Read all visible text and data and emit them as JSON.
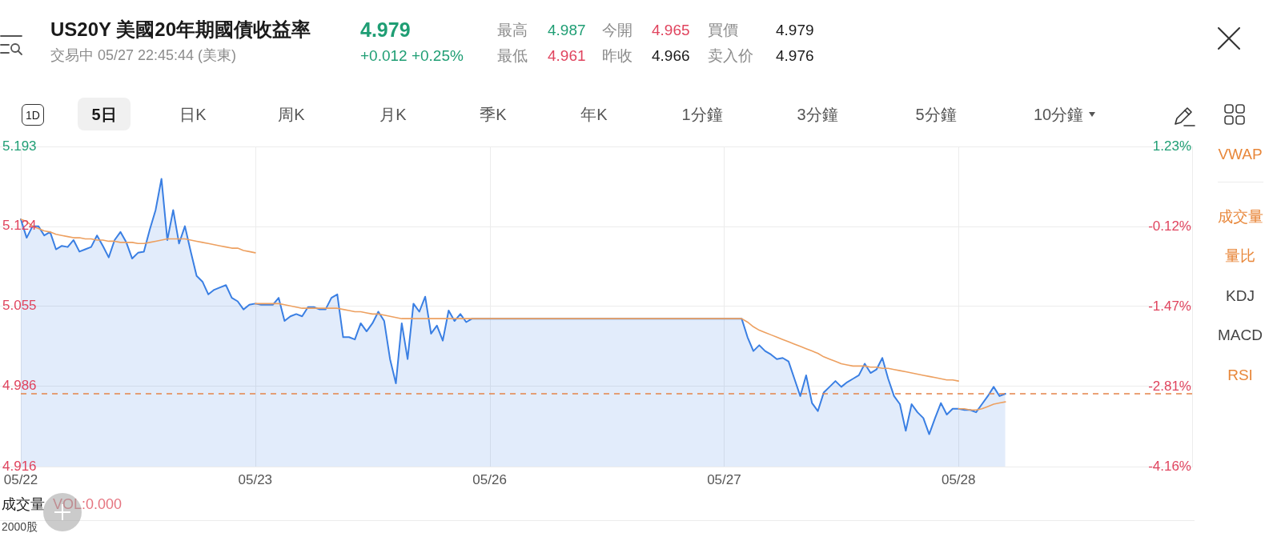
{
  "chart_data": {
    "type": "line",
    "title": "US20Y 美國20年期國債收益率",
    "subtitle": "交易中 05/27 22:45:44 (美東)",
    "annotations": [
      "4.979",
      "+0.012 +0.25%",
      "最高",
      "4.987",
      "今開",
      "4.965",
      "買價",
      "4.979",
      "最低",
      "4.961",
      "昨收",
      "4.966",
      "卖入价",
      "4.976",
      "1D",
      "5日",
      "日K",
      "周K",
      "月K",
      "季K",
      "年K",
      "1分鐘",
      "3分鐘",
      "5分鐘",
      "10分鐘",
      "VWAP",
      "成交量",
      "量比",
      "KDJ",
      "MACD",
      "RSI",
      "成交量",
      "VOL:0.000",
      "2000股"
    ],
    "categories": [
      "05/22",
      null,
      null,
      null,
      null,
      null,
      null,
      null,
      null,
      null,
      null,
      null,
      null,
      null,
      null,
      null,
      null,
      null,
      null,
      null,
      null,
      null,
      null,
      null,
      null,
      null,
      null,
      null,
      null,
      null,
      null,
      null,
      null,
      null,
      null,
      null,
      null,
      null,
      null,
      null,
      "05/23",
      null,
      null,
      null,
      null,
      null,
      null,
      null,
      null,
      null,
      null,
      null,
      null,
      null,
      null,
      null,
      null,
      null,
      null,
      null,
      null,
      null,
      null,
      null,
      null,
      null,
      null,
      null,
      null,
      null,
      null,
      null,
      null,
      null,
      null,
      null,
      null,
      null,
      null,
      null,
      "05/26",
      null,
      null,
      null,
      null,
      null,
      null,
      null,
      null,
      null,
      null,
      null,
      null,
      null,
      null,
      null,
      null,
      null,
      null,
      null,
      null,
      null,
      null,
      null,
      null,
      null,
      null,
      null,
      null,
      null,
      null,
      null,
      null,
      null,
      null,
      null,
      null,
      null,
      null,
      null,
      "05/27",
      null,
      null,
      null,
      null,
      null,
      null,
      null,
      null,
      null,
      null,
      null,
      null,
      null,
      null,
      null,
      null,
      null,
      null,
      null,
      null,
      null,
      null,
      null,
      null,
      null,
      null,
      null,
      null,
      null,
      null,
      null,
      null,
      null,
      null,
      null,
      null,
      null,
      null,
      null,
      "05/28",
      null,
      null,
      null,
      null,
      null,
      null,
      null,
      null,
      null,
      null,
      null,
      null,
      null,
      null,
      null,
      null,
      null,
      null,
      null,
      null,
      null,
      null,
      null,
      null,
      null,
      null,
      null,
      null,
      null,
      null,
      null,
      null,
      null,
      null,
      null,
      null,
      null,
      null,
      null,
      null
    ],
    "ylim": [
      4.916,
      5.193
    ],
    "yticks": [
      4.916,
      4.986,
      5.055,
      5.124,
      5.193
    ],
    "y2lim": [
      -4.16,
      1.23
    ],
    "y2ticks": [
      {
        "value": -4.16,
        "label": "-4.16%"
      },
      {
        "value": -2.81,
        "label": "-2.81%"
      },
      {
        "value": -1.47,
        "label": "-1.47%"
      },
      {
        "value": -0.12,
        "label": "-0.12%"
      },
      {
        "value": 1.23,
        "label": "1.23%"
      }
    ],
    "grid": true,
    "marker": "none",
    "ref_lines": [
      {
        "axis": "y",
        "value": 4.979,
        "color": "#e5844a",
        "line_style": "dashed"
      }
    ],
    "series": [
      {
        "type": "area",
        "color": "#3a7fe3",
        "values": [
          5.13,
          5.114,
          5.124,
          5.124,
          5.116,
          5.119,
          5.104,
          5.107,
          5.106,
          5.112,
          5.102,
          5.104,
          5.106,
          5.116,
          5.107,
          5.097,
          5.112,
          5.119,
          5.11,
          5.096,
          5.101,
          5.102,
          5.121,
          5.138,
          5.165,
          5.112,
          5.138,
          5.109,
          5.124,
          5.102,
          5.081,
          5.076,
          5.065,
          5.069,
          5.071,
          5.073,
          5.062,
          5.059,
          5.052,
          5.056,
          5.057,
          5.056,
          5.056,
          5.056,
          5.062,
          5.042,
          5.046,
          5.048,
          5.046,
          5.054,
          5.054,
          5.052,
          5.052,
          5.062,
          5.065,
          5.028,
          5.028,
          5.026,
          5.04,
          5.033,
          5.04,
          5.05,
          5.042,
          5.009,
          4.988,
          5.04,
          5.009,
          5.057,
          5.05,
          5.063,
          5.031,
          5.038,
          5.025,
          5.051,
          5.042,
          5.048,
          5.041,
          5.044,
          5.044,
          5.044,
          5.044,
          5.044,
          5.044,
          5.044,
          5.044,
          5.044,
          5.044,
          5.044,
          5.044,
          5.044,
          5.044,
          5.044,
          5.044,
          5.044,
          5.044,
          5.044,
          5.044,
          5.044,
          5.044,
          5.044,
          5.044,
          5.044,
          5.044,
          5.044,
          5.044,
          5.044,
          5.044,
          5.044,
          5.044,
          5.044,
          5.044,
          5.044,
          5.044,
          5.044,
          5.044,
          5.044,
          5.044,
          5.044,
          5.044,
          5.044,
          5.044,
          5.044,
          5.044,
          5.044,
          5.028,
          5.016,
          5.021,
          5.016,
          5.013,
          5.009,
          5.01,
          5.007,
          4.992,
          4.977,
          4.995,
          4.971,
          4.964,
          4.98,
          4.985,
          4.99,
          4.985,
          4.989,
          4.992,
          4.995,
          5.005,
          4.997,
          5.0,
          5.01,
          4.992,
          4.977,
          4.97,
          4.947,
          4.97,
          4.963,
          4.958,
          4.944,
          4.958,
          4.971,
          4.961,
          4.966,
          4.966,
          4.965,
          4.965,
          4.963,
          4.97,
          4.977,
          4.985,
          4.977,
          4.979,
          null,
          null,
          null,
          null,
          null,
          null,
          null,
          null,
          null,
          null,
          null,
          null,
          null,
          null,
          null,
          null,
          null,
          null,
          null,
          null,
          null,
          null,
          null,
          null,
          null,
          null,
          null,
          null,
          null,
          null,
          null,
          null
        ]
      },
      {
        "color": "#eda060",
        "values": [
          5.13,
          5.128,
          5.124,
          5.122,
          5.12,
          5.119,
          5.117,
          5.116,
          5.115,
          5.114,
          5.114,
          5.113,
          5.113,
          5.112,
          5.112,
          5.111,
          5.111,
          5.11,
          5.11,
          5.11,
          5.109,
          5.109,
          5.11,
          5.111,
          5.112,
          5.113,
          5.113,
          5.113,
          5.113,
          5.112,
          5.111,
          5.11,
          5.109,
          5.108,
          5.107,
          5.106,
          5.105,
          5.105,
          5.103,
          5.102,
          5.101,
          null,
          null,
          null,
          null,
          null,
          null,
          null,
          null,
          null,
          null,
          null,
          null,
          null,
          null,
          null,
          null,
          null,
          null,
          null,
          null,
          null,
          null,
          null,
          null,
          null,
          null,
          null,
          null,
          null,
          null,
          null,
          null,
          null,
          null,
          null,
          null,
          null,
          null,
          null,
          null,
          null,
          null,
          null,
          null,
          null,
          null,
          null,
          null,
          null,
          null,
          null,
          null,
          null,
          null,
          null,
          null,
          null,
          null,
          null,
          null,
          null,
          null,
          null,
          null,
          null,
          null,
          null,
          null,
          null,
          null,
          null,
          null,
          null,
          null,
          null,
          null,
          null,
          null,
          null,
          null,
          null,
          null,
          null,
          null,
          null,
          null,
          null,
          null,
          null,
          null,
          null,
          null,
          null,
          null,
          null,
          null,
          null,
          null,
          null,
          null,
          null,
          null,
          null,
          null,
          null,
          null,
          null,
          null,
          null,
          null,
          null,
          null,
          null,
          null,
          null,
          null,
          null,
          null,
          null,
          null,
          null,
          null,
          null,
          null,
          null,
          null,
          null,
          null,
          null,
          null,
          null,
          null,
          null,
          null,
          null,
          null,
          null,
          null,
          null,
          null,
          null,
          null,
          null,
          null,
          null,
          null,
          null,
          null,
          null,
          null,
          null,
          null,
          null,
          null,
          null,
          null,
          null,
          null,
          null,
          null
        ]
      },
      {
        "color": "#eda060",
        "values": [
          null,
          null,
          null,
          null,
          null,
          null,
          null,
          null,
          null,
          null,
          null,
          null,
          null,
          null,
          null,
          null,
          null,
          null,
          null,
          null,
          null,
          null,
          null,
          null,
          null,
          null,
          null,
          null,
          null,
          null,
          null,
          null,
          null,
          null,
          null,
          null,
          null,
          null,
          null,
          null,
          5.057,
          5.057,
          5.057,
          5.057,
          5.057,
          5.056,
          5.055,
          5.054,
          5.053,
          5.053,
          5.053,
          5.053,
          5.053,
          5.053,
          5.053,
          5.052,
          5.051,
          5.05,
          5.05,
          5.049,
          5.048,
          5.048,
          5.047,
          5.046,
          5.045,
          5.044,
          5.044,
          5.044,
          5.044,
          5.044,
          5.044,
          5.044,
          5.044,
          5.044,
          5.044,
          5.044,
          5.044,
          5.044,
          5.044,
          5.044,
          5.044,
          5.044,
          5.044,
          5.044,
          5.044,
          5.044,
          5.044,
          5.044,
          5.044,
          5.044,
          5.044,
          5.044,
          5.044,
          5.044,
          5.044,
          5.044,
          5.044,
          5.044,
          5.044,
          5.044,
          5.044,
          5.044,
          5.044,
          5.044,
          5.044,
          5.044,
          5.044,
          5.044,
          5.044,
          5.044,
          5.044,
          5.044,
          5.044,
          5.044,
          5.044,
          5.044,
          5.044,
          5.044,
          5.044,
          5.044,
          5.044,
          5.044,
          5.044,
          5.044,
          5.041,
          5.037,
          5.034,
          5.032,
          5.03,
          5.028,
          5.026,
          5.024,
          5.022,
          5.02,
          5.018,
          5.016,
          5.014,
          5.011,
          5.009,
          5.007,
          5.005,
          5.004,
          5.003,
          5.003,
          5.003,
          5.002,
          5.002,
          5.001,
          5.001,
          5.0,
          4.999,
          4.998,
          4.997,
          4.996,
          4.995,
          4.994,
          4.993,
          4.992,
          4.991,
          4.991,
          4.99,
          null,
          null,
          null,
          null,
          null,
          null,
          null,
          null,
          null,
          null,
          null,
          null,
          null,
          null,
          null,
          null,
          null,
          null,
          null,
          null,
          null,
          null,
          null,
          null,
          null,
          null,
          null,
          null,
          null,
          null,
          null,
          null,
          null,
          null,
          null,
          null,
          null,
          null,
          null,
          null
        ]
      },
      {
        "color": "#eda060",
        "values": [
          null,
          null,
          null,
          null,
          null,
          null,
          null,
          null,
          null,
          null,
          null,
          null,
          null,
          null,
          null,
          null,
          null,
          null,
          null,
          null,
          null,
          null,
          null,
          null,
          null,
          null,
          null,
          null,
          null,
          null,
          null,
          null,
          null,
          null,
          null,
          null,
          null,
          null,
          null,
          null,
          null,
          null,
          null,
          null,
          null,
          null,
          null,
          null,
          null,
          null,
          null,
          null,
          null,
          null,
          null,
          null,
          null,
          null,
          null,
          null,
          null,
          null,
          null,
          null,
          null,
          null,
          null,
          null,
          null,
          null,
          null,
          null,
          null,
          null,
          null,
          null,
          null,
          null,
          null,
          null,
          null,
          null,
          null,
          null,
          null,
          null,
          null,
          null,
          null,
          null,
          null,
          null,
          null,
          null,
          null,
          null,
          null,
          null,
          null,
          null,
          null,
          null,
          null,
          null,
          null,
          null,
          null,
          null,
          null,
          null,
          null,
          null,
          null,
          null,
          null,
          null,
          null,
          null,
          null,
          null,
          null,
          null,
          null,
          null,
          null,
          null,
          null,
          null,
          null,
          null,
          null,
          null,
          null,
          null,
          null,
          null,
          null,
          null,
          null,
          null,
          null,
          null,
          null,
          null,
          null,
          null,
          null,
          null,
          null,
          null,
          null,
          null,
          null,
          null,
          null,
          null,
          null,
          null,
          null,
          null,
          4.966,
          4.966,
          4.965,
          4.965,
          4.966,
          4.968,
          4.97,
          4.971,
          4.972,
          null,
          null,
          null,
          null,
          null,
          null,
          null,
          null,
          null,
          null,
          null,
          null,
          null,
          null,
          null,
          null,
          null,
          null,
          null,
          null,
          null,
          null,
          null,
          null,
          null,
          null,
          null,
          null,
          null,
          null,
          null,
          null
        ]
      }
    ]
  }
}
